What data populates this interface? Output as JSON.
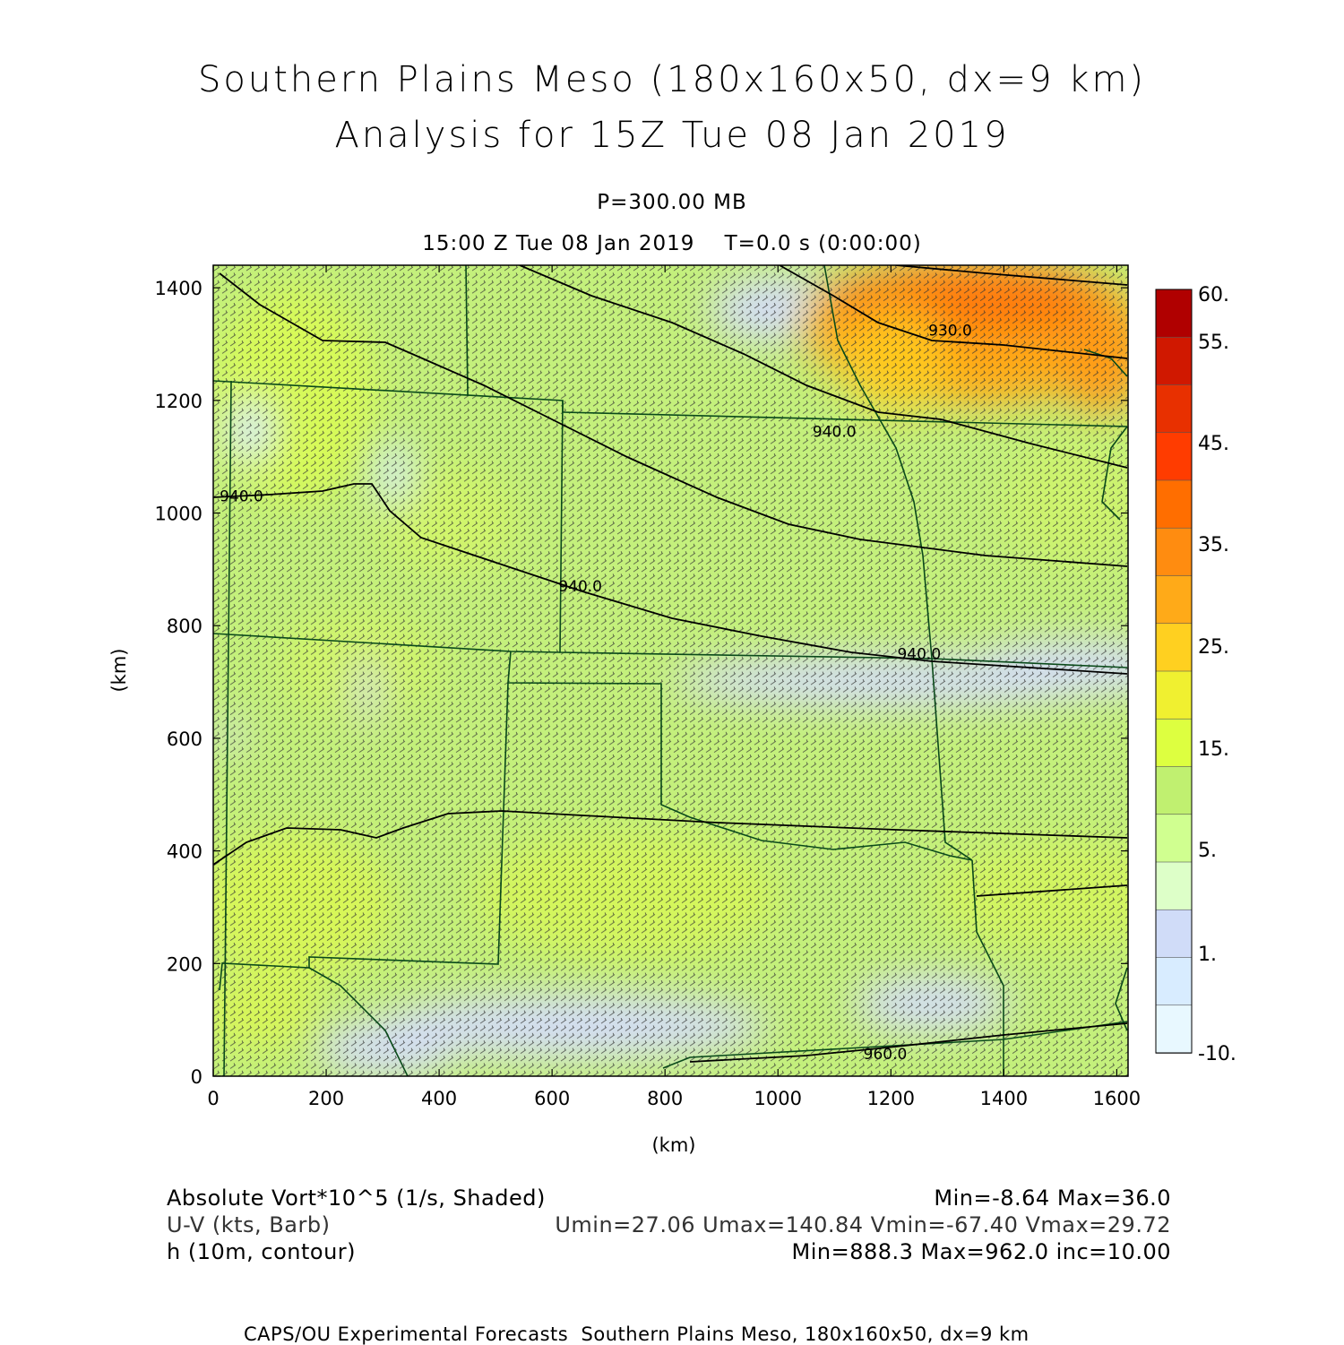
{
  "header": {
    "title_line1": "Southern Plains Meso (180x160x50, dx=9 km)",
    "title_line2": "Analysis for 15Z Tue 08 Jan 2019",
    "level": "P=300.00 MB",
    "time_line": "15:00 Z Tue 08 Jan 2019    T=0.0 s (0:00:00)"
  },
  "map": {
    "x_axis_label": "(km)",
    "y_axis_label": "(km)",
    "x_ticks": [
      "0",
      "200",
      "400",
      "600",
      "800",
      "1000",
      "1200",
      "1400",
      "1600"
    ],
    "y_ticks": [
      "0",
      "200",
      "400",
      "600",
      "800",
      "1000",
      "1200",
      "1400"
    ],
    "x_range_km": [
      0,
      1620
    ],
    "y_range_km": [
      0,
      1440
    ],
    "contour_labels": [
      {
        "text": "940.0",
        "x_km": 50,
        "y_km": 1030
      },
      {
        "text": "940.0",
        "x_km": 650,
        "y_km": 870
      },
      {
        "text": "940.0",
        "x_km": 1250,
        "y_km": 750
      },
      {
        "text": "940.0",
        "x_km": 1100,
        "y_km": 1145
      },
      {
        "text": "930.0",
        "x_km": 1305,
        "y_km": 1325
      },
      {
        "text": "960.0",
        "x_km": 1190,
        "y_km": 40
      }
    ]
  },
  "colorbar": {
    "labels": [
      "60.",
      "55.",
      "45.",
      "35.",
      "25.",
      "15.",
      "5.",
      "1.",
      "-10."
    ],
    "colors": [
      "#b00000",
      "#d01800",
      "#e83000",
      "#ff3c00",
      "#ff6e00",
      "#ff8c10",
      "#ffaa18",
      "#ffd020",
      "#f0f030",
      "#ddff40",
      "#c0f070",
      "#d0ff90",
      "#ddffc8",
      "#d0dcf8",
      "#d8ecff",
      "#e8f8ff"
    ]
  },
  "legend": {
    "field1_name": "Absolute Vort*10^5 (1/s, Shaded)",
    "field1_stats": "Min=-8.64 Max=36.0",
    "field2_name": "U-V (kts, Barb)",
    "field2_stats": "Umin=27.06 Umax=140.84 Vmin=-67.40 Vmax=29.72",
    "field3_name": "h (10m, contour)",
    "field3_stats": "Min=888.3 Max=962.0 inc=10.00"
  },
  "footer": {
    "credit": "CAPS/OU Experimental Forecasts  Southern Plains Meso, 180x160x50, dx=9 km"
  }
}
